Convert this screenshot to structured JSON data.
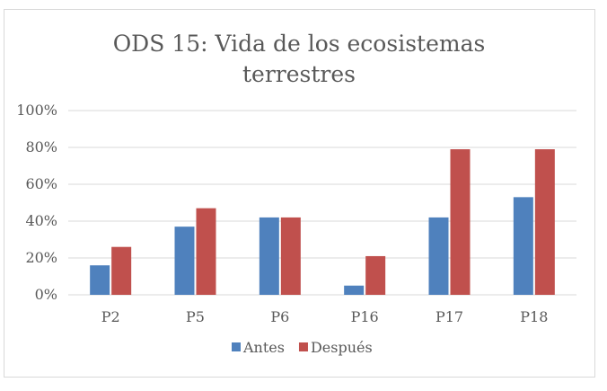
{
  "chart_data": {
    "type": "bar",
    "title_lines": [
      "ODS 15: Vida de los ecosistemas",
      "terrestres"
    ],
    "categories": [
      "P2",
      "P5",
      "P6",
      "P16",
      "P17",
      "P18"
    ],
    "series": [
      {
        "name": "Antes",
        "values": [
          0.16,
          0.37,
          0.42,
          0.05,
          0.42,
          0.53
        ],
        "color": "#4f81bd"
      },
      {
        "name": "Después",
        "values": [
          0.26,
          0.47,
          0.42,
          0.21,
          0.79,
          0.79
        ],
        "color": "#c0504d"
      }
    ],
    "ylim": [
      0,
      1
    ],
    "yticks": [
      0,
      0.2,
      0.4,
      0.6,
      0.8,
      1.0
    ],
    "ytick_labels": [
      "0%",
      "20%",
      "40%",
      "60%",
      "80%",
      "100%"
    ],
    "grid": true,
    "grid_color": "#d9d9d9",
    "legend_position": "bottom"
  }
}
